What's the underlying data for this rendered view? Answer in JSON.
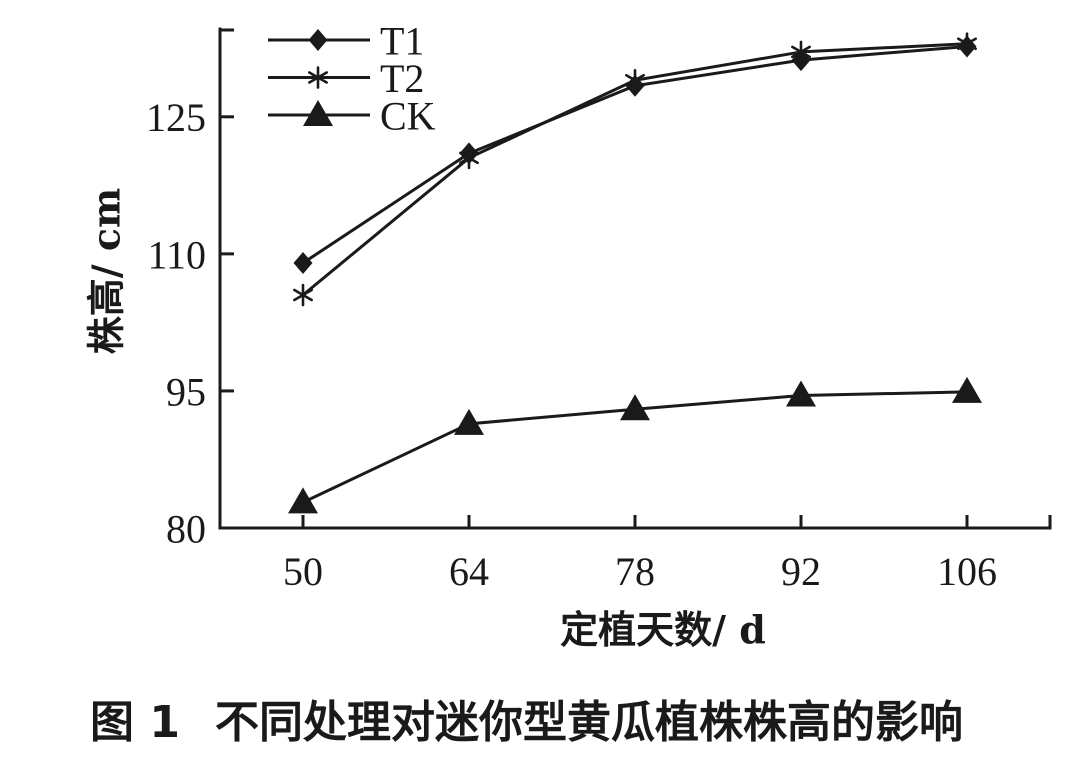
{
  "chart_data": {
    "type": "line",
    "xlabel": "定植天数/ d",
    "ylabel": "株高/ cm",
    "x": [
      50,
      64,
      78,
      92,
      106
    ],
    "y_ticks": [
      80,
      95,
      110,
      125
    ],
    "xlim": [
      43,
      113
    ],
    "ylim": [
      80,
      134.5
    ],
    "grid": false,
    "legend": "top-left",
    "line_color": "#1a1a1a",
    "series": [
      {
        "name": "T1",
        "marker": "diamond",
        "values": [
          109.0,
          121.0,
          128.4,
          131.2,
          132.7
        ]
      },
      {
        "name": "T2",
        "marker": "asterisk",
        "values": [
          105.5,
          120.5,
          129.0,
          132.1,
          133.0
        ]
      },
      {
        "name": "CK",
        "marker": "triangle",
        "values": [
          82.8,
          91.4,
          93.0,
          94.5,
          94.9
        ]
      }
    ]
  },
  "caption": {
    "figure_label": "图 1",
    "title": "不同处理对迷你型黄瓜植株株高的影响"
  }
}
